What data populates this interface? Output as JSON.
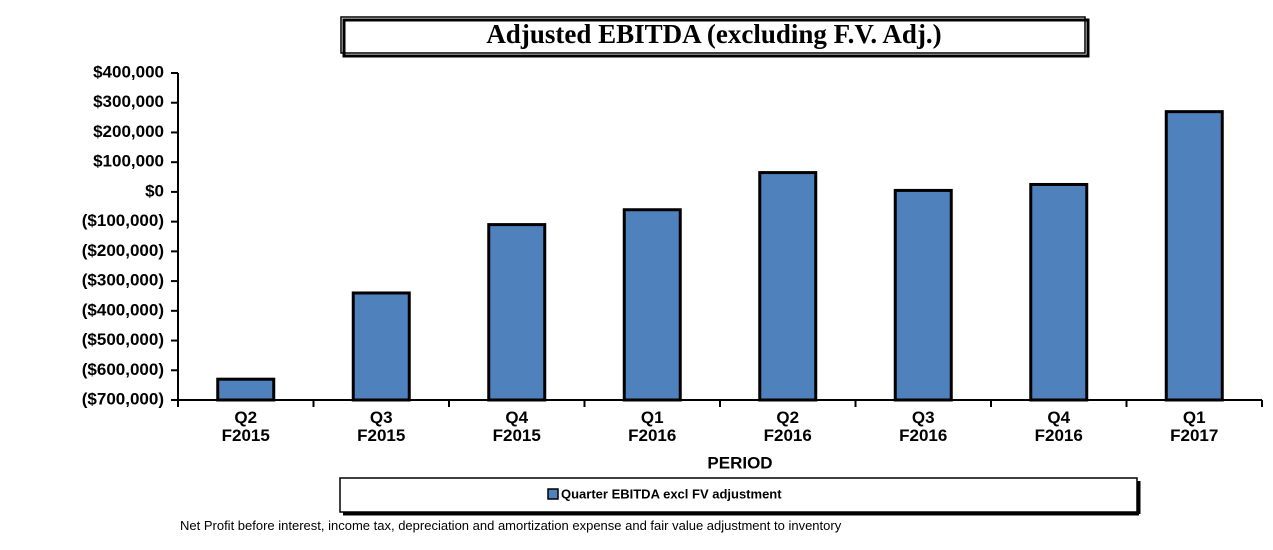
{
  "chart_data": {
    "type": "bar",
    "title": "Adjusted EBITDA (excluding F.V. Adj.)",
    "x_label": "PERIOD",
    "categories": [
      "Q2 F2015",
      "Q3 F2015",
      "Q4 F2015",
      "Q1 F2016",
      "Q2 F2016",
      "Q3 F2016",
      "Q4 F2016",
      "Q1 F2017"
    ],
    "series": [
      {
        "name": "Quarter EBITDA excl FV adjustment",
        "color": "#4f81bd",
        "values": [
          -630000,
          -340000,
          -110000,
          -60000,
          65000,
          5000,
          25000,
          270000
        ]
      }
    ],
    "ylim": [
      -700000,
      400000
    ],
    "yticks": [
      {
        "value": 400000,
        "label": "$400,000"
      },
      {
        "value": 300000,
        "label": "$300,000"
      },
      {
        "value": 200000,
        "label": "$200,000"
      },
      {
        "value": 100000,
        "label": "$100,000"
      },
      {
        "value": 0,
        "label": "$0"
      },
      {
        "value": -100000,
        "label": "($100,000)"
      },
      {
        "value": -200000,
        "label": "($200,000)"
      },
      {
        "value": -300000,
        "label": "($300,000)"
      },
      {
        "value": -400000,
        "label": "($400,000)"
      },
      {
        "value": -500000,
        "label": "($500,000)"
      },
      {
        "value": -600000,
        "label": "($600,000)"
      },
      {
        "value": -700000,
        "label": "($700,000)"
      }
    ],
    "grid": false,
    "legend": "bottom",
    "note": "Net Profit before interest, income tax, depreciation and amortization expense and fair value adjustment to inventory"
  }
}
